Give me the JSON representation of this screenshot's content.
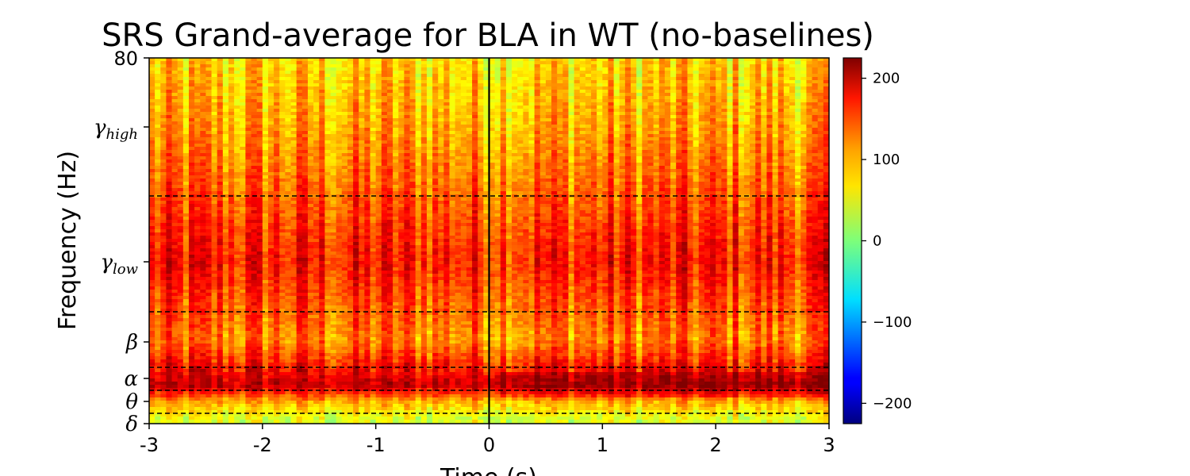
{
  "chart_data": {
    "type": "heatmap",
    "title": "SRS Grand-average for BLA in WT (no-baselines)",
    "xlabel": "Time (s)",
    "ylabel": "Frequency (Hz)",
    "x_range": [
      -3,
      3
    ],
    "y_top_tick": "80",
    "x_ticks": [
      {
        "value": -3,
        "label": "-3"
      },
      {
        "value": -2,
        "label": "-2"
      },
      {
        "value": -1,
        "label": "-1"
      },
      {
        "value": 0,
        "label": "0"
      },
      {
        "value": 1,
        "label": "1"
      },
      {
        "value": 2,
        "label": "2"
      },
      {
        "value": 3,
        "label": "3"
      }
    ],
    "band_labels": [
      {
        "symbol": "δ",
        "sub": ""
      },
      {
        "symbol": "θ",
        "sub": ""
      },
      {
        "symbol": "α",
        "sub": ""
      },
      {
        "symbol": "β",
        "sub": ""
      },
      {
        "symbol": "γ",
        "sub": "low"
      },
      {
        "symbol": "γ",
        "sub": "high"
      }
    ],
    "band_profile": [
      {
        "band": "δ",
        "value": 40
      },
      {
        "band": "θ",
        "value": 90
      },
      {
        "band": "α",
        "value": 195
      },
      {
        "band": "β",
        "value": 110
      },
      {
        "band": "γ_low",
        "value": 160
      },
      {
        "band": "γ_high",
        "value": 95
      },
      {
        "band": "top",
        "value": 72
      }
    ],
    "event_marker_time": 0,
    "colorbar": {
      "colormap": "jet",
      "range": [
        -225,
        225
      ],
      "ticks": [
        {
          "value": 200,
          "label": "200"
        },
        {
          "value": 100,
          "label": "100"
        },
        {
          "value": 0,
          "label": "0"
        },
        {
          "value": -100,
          "label": "−100"
        },
        {
          "value": -200,
          "label": "−200"
        }
      ]
    }
  }
}
